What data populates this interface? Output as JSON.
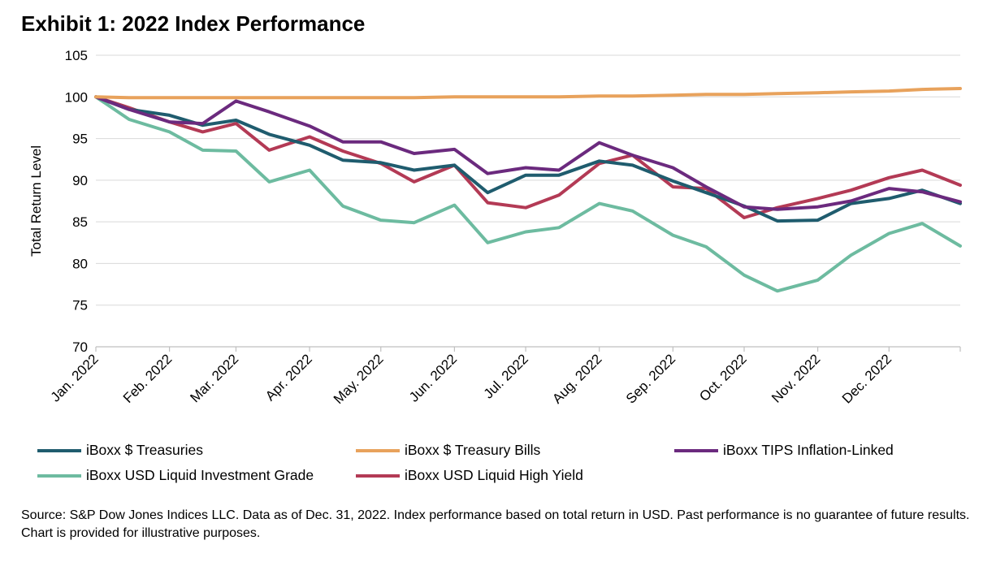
{
  "title": "Exhibit 1: 2022 Index Performance",
  "source": "Source: S&P Dow Jones Indices LLC. Data as of Dec. 31, 2022. Index performance based on total return in USD. Past performance is no guarantee of future results. Chart is provided for illustrative purposes.",
  "chart_data": {
    "type": "line",
    "title": "Exhibit 1: 2022 Index Performance",
    "xlabel": "",
    "ylabel": "Total Return Level",
    "ylim": [
      70,
      105
    ],
    "yticks": [
      70,
      75,
      80,
      85,
      90,
      95,
      100,
      105
    ],
    "xlim": [
      "2022-01-01",
      "2022-12-31"
    ],
    "categories": [
      "Jan. 2022",
      "Feb. 2022",
      "Mar. 2022",
      "Apr. 2022",
      "May. 2022",
      "Jun. 2022",
      "Jul. 2022",
      "Aug. 2022",
      "Sep. 2022",
      "Oct. 2022",
      "Nov. 2022",
      "Dec. 2022"
    ],
    "x": [
      "2022-01-01",
      "2022-01-15",
      "2022-02-01",
      "2022-02-15",
      "2022-03-01",
      "2022-03-15",
      "2022-04-01",
      "2022-04-15",
      "2022-05-01",
      "2022-05-15",
      "2022-06-01",
      "2022-06-15",
      "2022-07-01",
      "2022-07-15",
      "2022-08-01",
      "2022-08-15",
      "2022-09-01",
      "2022-09-15",
      "2022-10-01",
      "2022-10-15",
      "2022-11-01",
      "2022-11-15",
      "2022-12-01",
      "2022-12-15",
      "2022-12-31"
    ],
    "grid": true,
    "legend_position": "bottom",
    "series": [
      {
        "name": "iBoxx $ Treasuries",
        "color": "#1f5c6e",
        "values": [
          100,
          98.5,
          97.8,
          96.6,
          97.2,
          95.5,
          94.2,
          92.4,
          92.1,
          91.2,
          91.8,
          88.5,
          90.6,
          90.6,
          92.3,
          91.8,
          89.9,
          88.5,
          86.9,
          85.1,
          85.2,
          87.2,
          87.8,
          88.8,
          87.2
        ]
      },
      {
        "name": "iBoxx $ Treasury Bills",
        "color": "#e8a25c",
        "values": [
          100,
          99.9,
          99.9,
          99.9,
          99.9,
          99.9,
          99.9,
          99.9,
          99.9,
          99.9,
          100.0,
          100.0,
          100.0,
          100.0,
          100.1,
          100.1,
          100.2,
          100.3,
          100.3,
          100.4,
          100.5,
          100.6,
          100.7,
          100.9,
          101.0
        ]
      },
      {
        "name": "iBoxx TIPS Inflation-Linked",
        "color": "#6b2a7e",
        "values": [
          100,
          98.5,
          97.0,
          96.8,
          99.5,
          98.2,
          96.5,
          94.6,
          94.6,
          93.2,
          93.7,
          90.8,
          91.5,
          91.2,
          94.5,
          93.0,
          91.5,
          89.2,
          86.8,
          86.5,
          86.8,
          87.5,
          89.0,
          88.6,
          87.4
        ]
      },
      {
        "name": "iBoxx USD Liquid Investment Grade",
        "color": "#6dbba0",
        "values": [
          100,
          97.3,
          95.8,
          93.6,
          93.5,
          89.8,
          91.2,
          86.9,
          85.2,
          84.9,
          87.0,
          82.5,
          83.8,
          84.3,
          87.2,
          86.3,
          83.4,
          82.0,
          78.6,
          76.7,
          78.0,
          81.0,
          83.6,
          84.8,
          82.1
        ]
      },
      {
        "name": "iBoxx USD Liquid High Yield",
        "color": "#b33a55",
        "values": [
          100,
          98.7,
          97.0,
          95.8,
          96.8,
          93.6,
          95.2,
          93.5,
          92.0,
          89.8,
          91.8,
          87.3,
          86.7,
          88.2,
          92.0,
          93.0,
          89.2,
          89.0,
          85.5,
          86.7,
          87.8,
          88.8,
          90.3,
          91.2,
          89.4
        ]
      }
    ]
  }
}
